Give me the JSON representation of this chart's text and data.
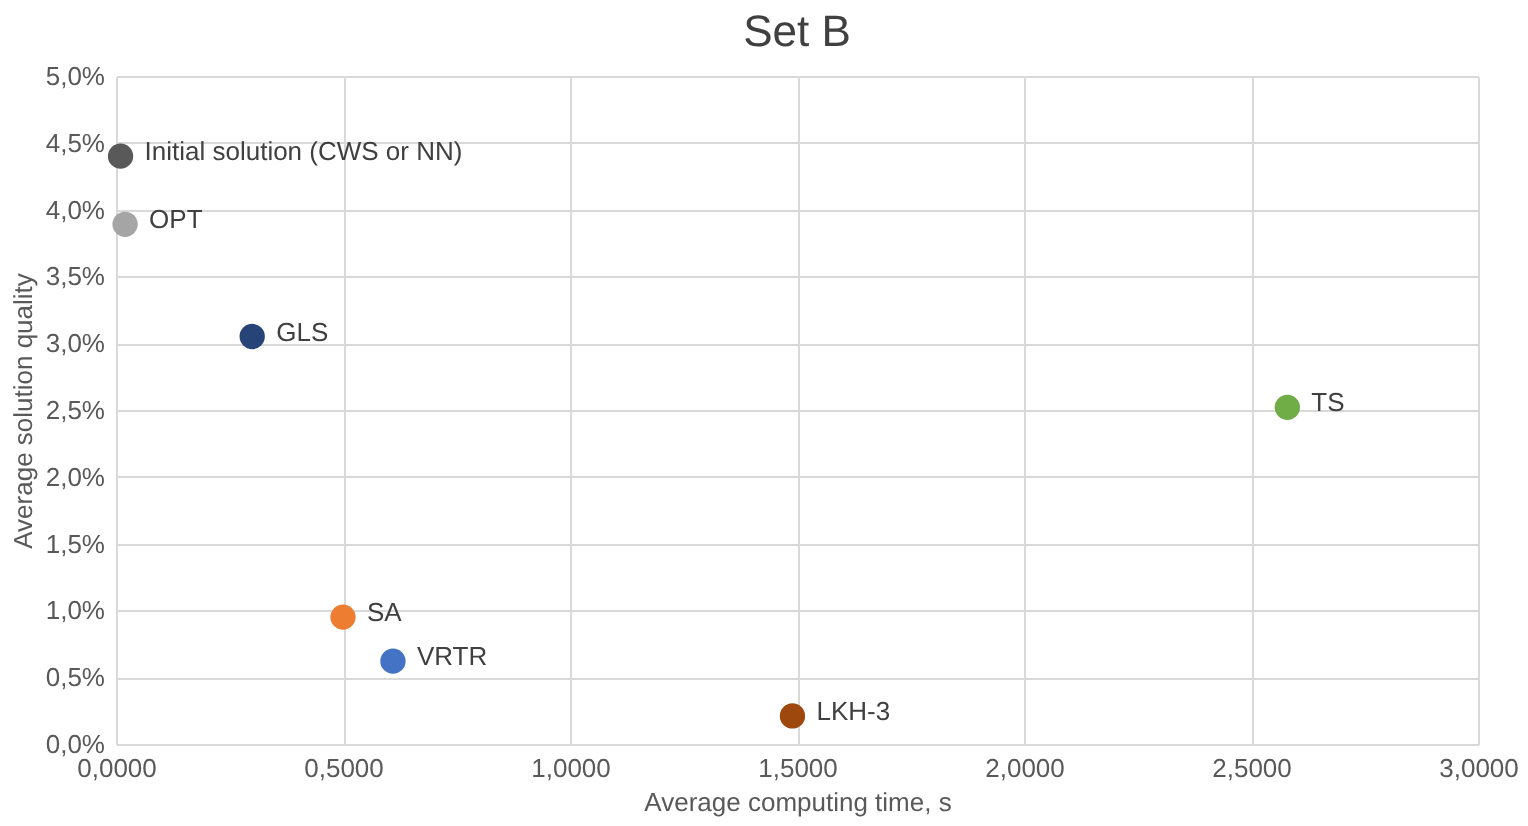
{
  "chart_data": {
    "type": "scatter",
    "title": "Set B",
    "xlabel": "Average computing time, s",
    "ylabel": "Average solution quality",
    "series": [
      {
        "name": "Initial solution (CWS or NN)",
        "color": "#595959",
        "x": [
          0.01
        ],
        "values": [
          4.4
        ]
      },
      {
        "name": "OPT",
        "color": "#a5a5a5",
        "x": [
          0.02
        ],
        "values": [
          3.89
        ]
      },
      {
        "name": "GLS",
        "color": "#264478",
        "x": [
          0.3
        ],
        "values": [
          3.05
        ]
      },
      {
        "name": "SA",
        "color": "#ed7d31",
        "x": [
          0.5
        ],
        "values": [
          0.95
        ]
      },
      {
        "name": "VRTR",
        "color": "#4472c4",
        "x": [
          0.61
        ],
        "values": [
          0.62
        ]
      },
      {
        "name": "LKH-3",
        "color": "#9e480e",
        "x": [
          1.49
        ],
        "values": [
          0.21
        ]
      },
      {
        "name": "TS",
        "color": "#70ad47",
        "x": [
          2.58
        ],
        "values": [
          2.52
        ]
      }
    ],
    "xlim": [
      0,
      3
    ],
    "ylim": [
      0,
      5
    ],
    "xticks": [
      {
        "value": 0,
        "label": "0,0000"
      },
      {
        "value": 0.5,
        "label": "0,5000"
      },
      {
        "value": 1,
        "label": "1,0000"
      },
      {
        "value": 1.5,
        "label": "1,5000"
      },
      {
        "value": 2,
        "label": "2,0000"
      },
      {
        "value": 2.5,
        "label": "2,5000"
      },
      {
        "value": 3,
        "label": "3,0000"
      }
    ],
    "yticks": [
      {
        "value": 0,
        "label": "0,0%"
      },
      {
        "value": 0.5,
        "label": "0,5%"
      },
      {
        "value": 1,
        "label": "1,0%"
      },
      {
        "value": 1.5,
        "label": "1,5%"
      },
      {
        "value": 2,
        "label": "2,0%"
      },
      {
        "value": 2.5,
        "label": "2,5%"
      },
      {
        "value": 3,
        "label": "3,0%"
      },
      {
        "value": 3.5,
        "label": "3,5%"
      },
      {
        "value": 4,
        "label": "4,0%"
      },
      {
        "value": 4.5,
        "label": "4,5%"
      },
      {
        "value": 5,
        "label": "5,0%"
      }
    ],
    "grid": true,
    "legend": false,
    "marker": "circle"
  }
}
